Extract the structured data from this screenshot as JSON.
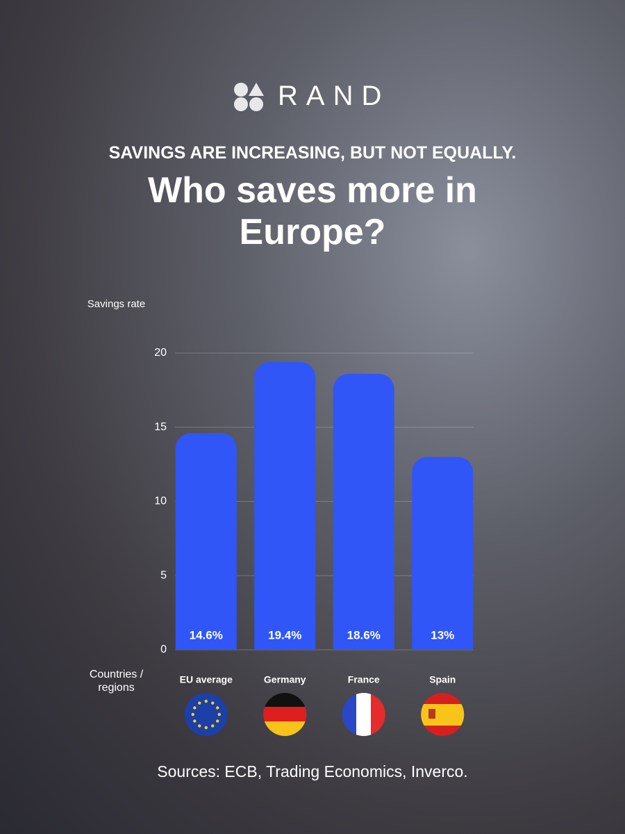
{
  "brand": "RAND",
  "chart_data": {
    "type": "bar",
    "subtitle": "SAVINGS ARE INCREASING, BUT NOT EQUALLY.",
    "title": "Who saves more in Europe?",
    "y_label": "Savings rate",
    "x_label": "Countries / regions",
    "categories": [
      "EU average",
      "Germany",
      "France",
      "Spain"
    ],
    "values": [
      14.6,
      19.4,
      18.6,
      13
    ],
    "value_labels": [
      "14.6%",
      "19.4%",
      "18.6%",
      "13%"
    ],
    "color": "#3056f7",
    "ylim": [
      0,
      20
    ],
    "yticks": [
      0,
      5,
      10,
      15,
      20
    ],
    "grid": true
  },
  "source": "Sources: ECB, Trading Economics, Inverco."
}
